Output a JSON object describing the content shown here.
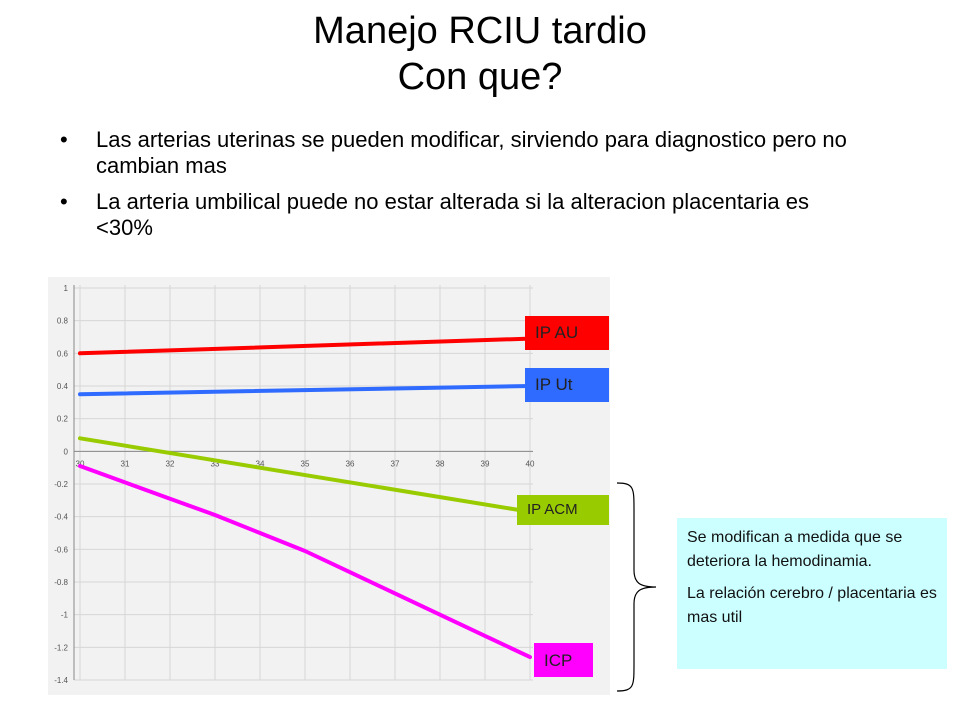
{
  "slide": {
    "title_line1": "Manejo RCIU tardio",
    "title_line2": "Con que?",
    "bullets": [
      "Las arterias uterinas se pueden modificar, sirviendo para diagnostico pero no cambian mas",
      "La arteria umbilical puede no estar alterada si la alteracion placentaria es <30%"
    ],
    "note": {
      "paragraph1": "Se modifican a medida que se deteriora la hemodinamia.",
      "paragraph2": "La relación cerebro / placentaria es mas util"
    }
  },
  "chart_data": {
    "type": "line",
    "title": "",
    "xlabel": "",
    "ylabel": "",
    "xlim": [
      30,
      40
    ],
    "ylim": [
      -1.4,
      1
    ],
    "x_ticks": [
      "30",
      "31",
      "32",
      "33",
      "34",
      "35",
      "36",
      "37",
      "38",
      "39",
      "40"
    ],
    "y_ticks": [
      "1",
      "0.8",
      "0.6",
      "0.4",
      "0.2",
      "0",
      "-0.2",
      "-0.4",
      "-0.6",
      "-0.8",
      "-1",
      "-1.2",
      "-1.4"
    ],
    "grid": true,
    "series": [
      {
        "name": "IP AU",
        "color": "#ff0000",
        "x": [
          30,
          40
        ],
        "y": [
          0.6,
          0.69
        ]
      },
      {
        "name": "IP Ut",
        "color": "#2f6bff",
        "x": [
          30,
          40
        ],
        "y": [
          0.35,
          0.4
        ]
      },
      {
        "name": "IP ACM",
        "color": "#99cc00",
        "x": [
          30,
          40
        ],
        "y": [
          0.08,
          -0.37
        ]
      },
      {
        "name": "ICP",
        "color": "#ff00ff",
        "x": [
          30,
          31,
          32,
          33,
          34,
          35,
          36,
          37,
          38,
          39,
          40
        ],
        "y": [
          -0.09,
          -0.19,
          -0.29,
          -0.39,
          -0.5,
          -0.61,
          -0.74,
          -0.87,
          -1.0,
          -1.13,
          -1.26
        ]
      }
    ]
  }
}
